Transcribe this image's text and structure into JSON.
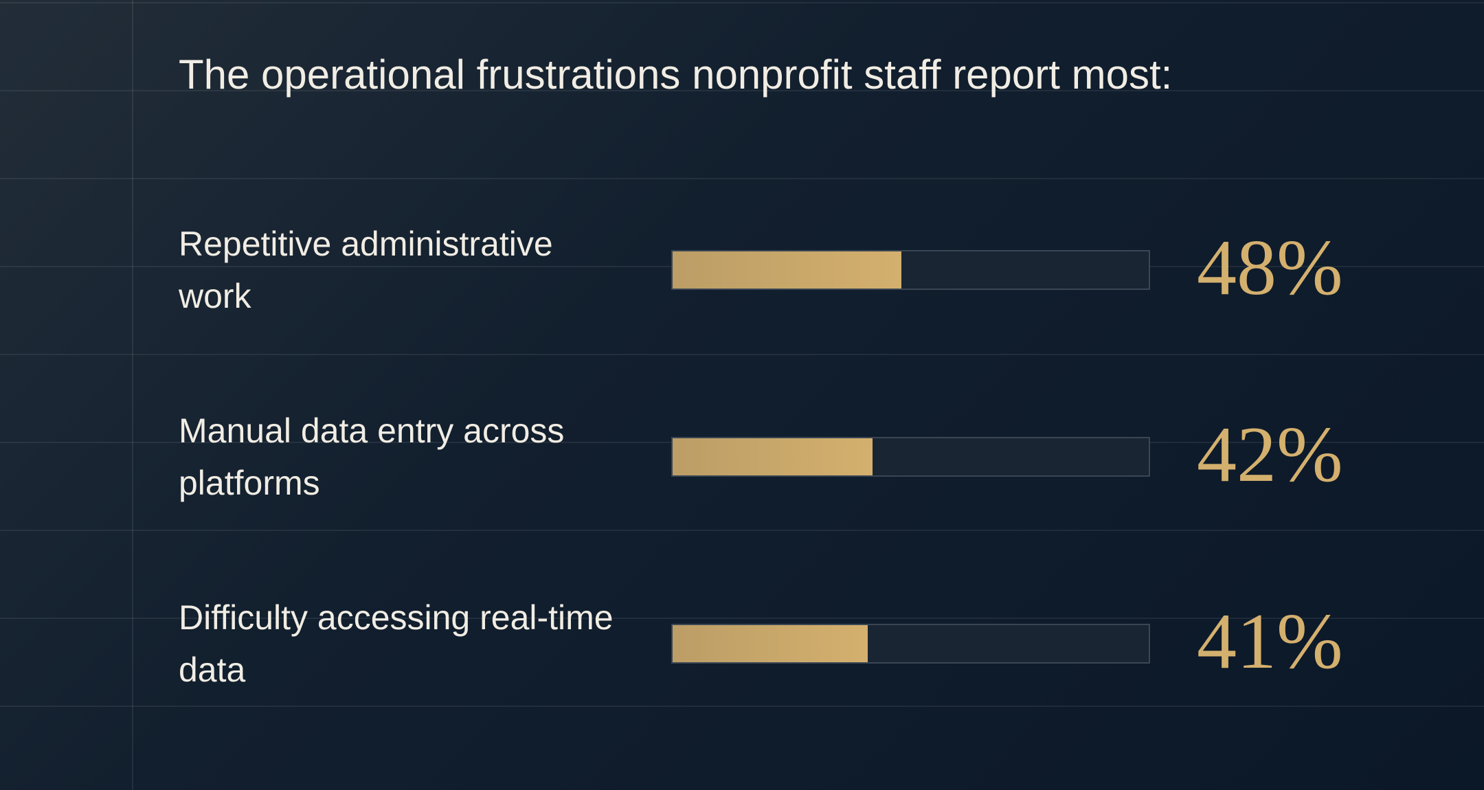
{
  "chart_data": {
    "type": "bar",
    "title": "The operational frustrations nonprofit staff report most:",
    "categories": [
      "Repetitive administrative work",
      "Manual data entry across platforms",
      "Difficulty accessing real-time data"
    ],
    "values": [
      48,
      42,
      41
    ],
    "value_labels": [
      "48%",
      "42%",
      "41%"
    ],
    "xlim": [
      0,
      100
    ],
    "color": "#d4b06e"
  }
}
